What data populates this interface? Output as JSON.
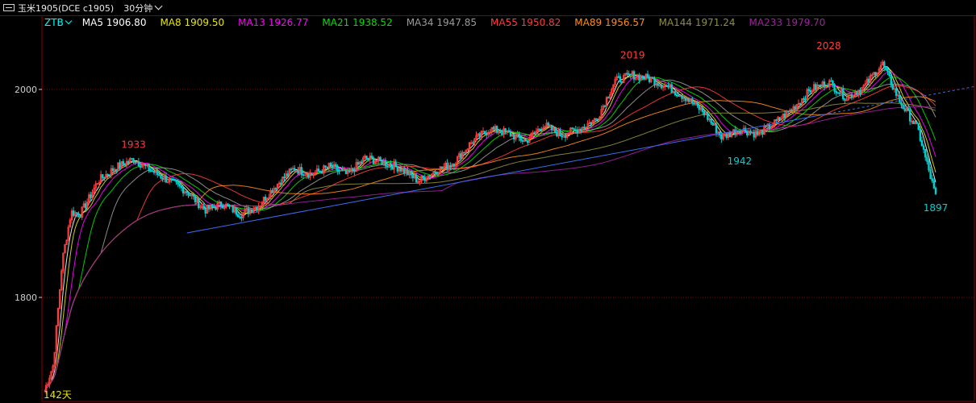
{
  "window": {
    "symbol": "玉米1905(DCE c1905)",
    "period": "30分钟"
  },
  "legend": {
    "indicator": "ZTB",
    "mas": [
      {
        "name": "MA5",
        "value": "1906.80",
        "color": "#ffffff"
      },
      {
        "name": "MA8",
        "value": "1909.50",
        "color": "#e6e600"
      },
      {
        "name": "MA13",
        "value": "1926.77",
        "color": "#ff00ff"
      },
      {
        "name": "MA21",
        "value": "1938.52",
        "color": "#00e000"
      },
      {
        "name": "MA34",
        "value": "1947.85",
        "color": "#9a9a9a"
      },
      {
        "name": "MA55",
        "value": "1950.82",
        "color": "#ff3c3c"
      },
      {
        "name": "MA89",
        "value": "1956.57",
        "color": "#ff8c1a"
      },
      {
        "name": "MA144",
        "value": "1971.24",
        "color": "#8f8f3a"
      },
      {
        "name": "MA233",
        "value": "1979.70",
        "color": "#a020a0"
      }
    ]
  },
  "bottom_label": "142天",
  "colors": {
    "grid": "#8b0000",
    "trendline": "#3a6df0",
    "high_label": "#ff3c3c",
    "low_label": "#00d0d0",
    "up_candle": "#ff3c3c",
    "down_candle": "#00d0d0"
  },
  "chart_data": {
    "type": "line",
    "y_ticks": [
      2000,
      1800
    ],
    "ylim": [
      1700,
      2055
    ],
    "x": [
      0,
      1,
      2,
      3,
      4,
      5,
      6,
      8,
      10,
      12,
      14,
      16,
      18,
      20,
      22,
      24,
      26,
      28,
      30,
      32,
      34,
      36,
      38,
      40,
      42,
      44,
      46,
      48,
      50,
      52,
      54,
      56,
      58,
      60,
      62,
      64,
      66,
      68,
      70,
      72,
      74,
      76,
      78,
      80,
      82,
      84,
      86,
      88,
      90,
      92,
      94,
      96,
      98,
      100
    ],
    "close": [
      1710,
      1735,
      1835,
      1882,
      1880,
      1895,
      1912,
      1925,
      1933,
      1922,
      1912,
      1902,
      1884,
      1890,
      1880,
      1888,
      1908,
      1924,
      1918,
      1926,
      1918,
      1934,
      1930,
      1924,
      1912,
      1922,
      1930,
      1950,
      1962,
      1958,
      1950,
      1966,
      1956,
      1962,
      1972,
      2008,
      2014,
      2010,
      2002,
      1992,
      1978,
      1954,
      1962,
      1957,
      1968,
      1982,
      2000,
      2007,
      1992,
      2003,
      2025,
      1988,
      1962,
      1897
    ],
    "annotations": [
      {
        "label": "1933",
        "x": 10,
        "y": 1933,
        "kind": "high"
      },
      {
        "label": "2019",
        "x": 66,
        "y": 2019,
        "kind": "high"
      },
      {
        "label": "1942",
        "x": 78,
        "y": 1942,
        "kind": "low"
      },
      {
        "label": "2028",
        "x": 88,
        "y": 2028,
        "kind": "high"
      },
      {
        "label": "1897",
        "x": 100,
        "y": 1897,
        "kind": "low"
      }
    ],
    "trendline": [
      [
        16,
        1862
      ],
      [
        107,
        2007
      ]
    ]
  }
}
